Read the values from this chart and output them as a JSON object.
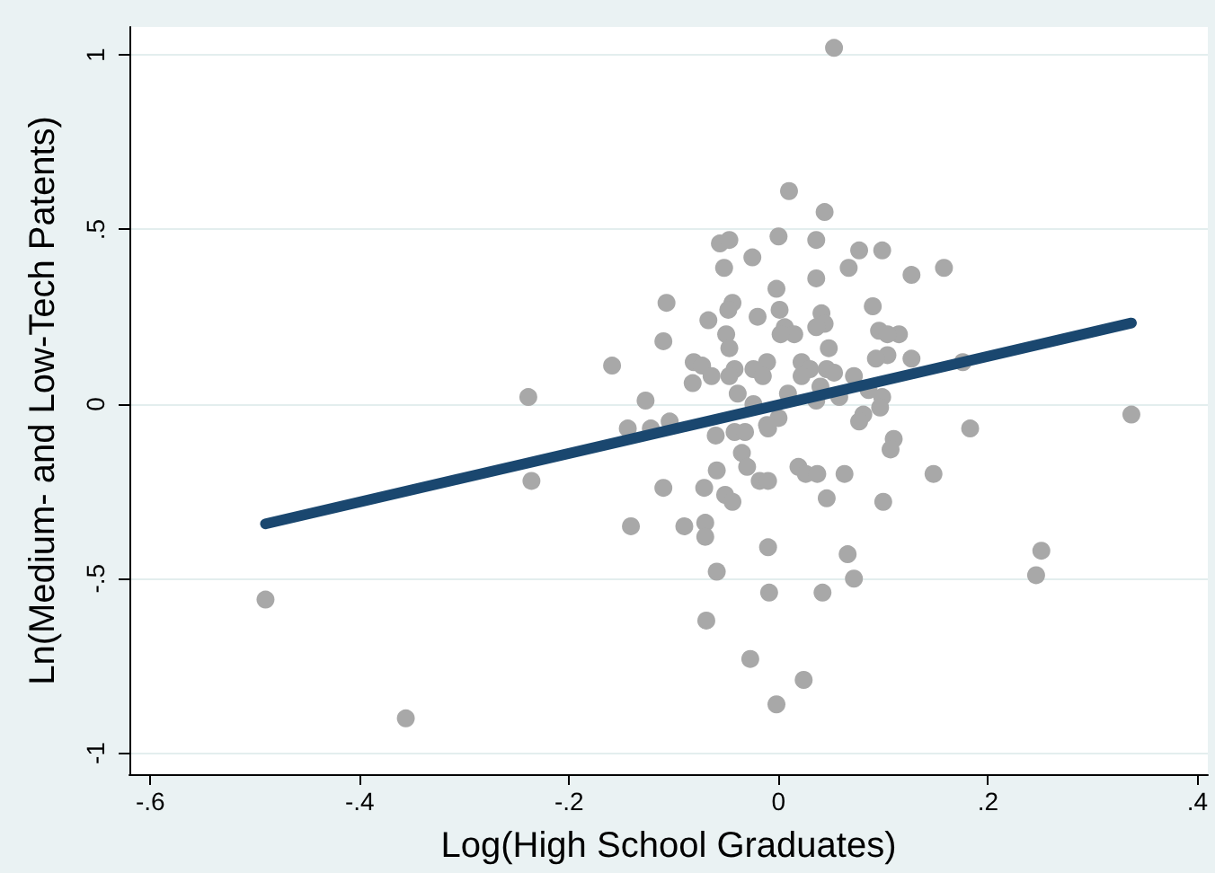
{
  "chart_data": {
    "type": "scatter",
    "xlabel": "Log(High School Graduates)",
    "ylabel": "Ln(Medium- and Low-Tech Patents)",
    "xlim": [
      -0.62,
      0.41
    ],
    "ylim": [
      -1.06,
      1.08
    ],
    "xticks": [
      {
        "value": -0.6,
        "label": "-.6"
      },
      {
        "value": -0.4,
        "label": "-.4"
      },
      {
        "value": -0.2,
        "label": "-.2"
      },
      0,
      {
        "value": 0.2,
        "label": ".2"
      },
      {
        "value": 0.4,
        "label": ".4"
      }
    ],
    "yticks": [
      {
        "value": -1,
        "label": "-1"
      },
      {
        "value": -0.5,
        "label": "-.5"
      },
      0,
      {
        "value": 0.5,
        "label": ".5"
      },
      1
    ],
    "grid": "y",
    "series": [
      {
        "color": "#a8a8a8",
        "marker": "circle",
        "x": [
          0.053,
          0.01,
          0.044,
          0.0,
          0.036,
          -0.056,
          -0.047,
          -0.025,
          0.077,
          0.099,
          -0.052,
          0.067,
          0.127,
          0.158,
          0.036,
          -0.002,
          -0.107,
          -0.044,
          0.09,
          -0.048,
          0.001,
          -0.02,
          0.041,
          -0.067,
          0.044,
          0.036,
          0.006,
          0.015,
          -0.05,
          0.002,
          0.096,
          0.115,
          0.104,
          -0.11,
          -0.047,
          0.048,
          0.104,
          0.127,
          0.093,
          -0.159,
          -0.081,
          -0.073,
          -0.042,
          -0.024,
          -0.011,
          0.022,
          0.046,
          0.03,
          0.176,
          -0.082,
          -0.064,
          -0.047,
          -0.015,
          0.022,
          0.053,
          0.072,
          0.086,
          -0.039,
          0.009,
          0.04,
          0.058,
          0.036,
          0.099,
          -0.239,
          -0.127,
          -0.024,
          0.097,
          0.081,
          0.337,
          0.0,
          0.077,
          -0.144,
          -0.122,
          -0.104,
          -0.042,
          -0.032,
          -0.011,
          -0.01,
          0.183,
          -0.06,
          0.11,
          0.107,
          -0.035,
          -0.059,
          -0.03,
          0.019,
          0.026,
          0.037,
          0.063,
          0.148,
          -0.018,
          -0.01,
          -0.236,
          -0.11,
          -0.071,
          -0.051,
          -0.044,
          0.046,
          0.1,
          -0.141,
          -0.09,
          -0.07,
          -0.07,
          -0.01,
          0.066,
          0.251,
          0.246,
          -0.059,
          0.072,
          -0.009,
          0.042,
          -0.49,
          -0.069,
          -0.027,
          0.024,
          -0.002,
          -0.356
        ],
        "values": [
          1.02,
          0.61,
          0.55,
          0.48,
          0.47,
          0.46,
          0.47,
          0.42,
          0.44,
          0.44,
          0.39,
          0.39,
          0.37,
          0.39,
          0.36,
          0.33,
          0.29,
          0.29,
          0.28,
          0.27,
          0.27,
          0.25,
          0.26,
          0.24,
          0.23,
          0.22,
          0.22,
          0.2,
          0.2,
          0.2,
          0.21,
          0.2,
          0.2,
          0.18,
          0.16,
          0.16,
          0.14,
          0.13,
          0.13,
          0.11,
          0.12,
          0.11,
          0.1,
          0.1,
          0.12,
          0.12,
          0.1,
          0.1,
          0.12,
          0.06,
          0.08,
          0.08,
          0.08,
          0.08,
          0.09,
          0.08,
          0.04,
          0.03,
          0.03,
          0.05,
          0.02,
          0.01,
          0.02,
          0.02,
          0.01,
          0.0,
          -0.01,
          -0.03,
          -0.03,
          -0.04,
          -0.05,
          -0.07,
          -0.07,
          -0.05,
          -0.08,
          -0.08,
          -0.06,
          -0.07,
          -0.07,
          -0.09,
          -0.1,
          -0.13,
          -0.14,
          -0.19,
          -0.18,
          -0.18,
          -0.2,
          -0.2,
          -0.2,
          -0.2,
          -0.22,
          -0.22,
          -0.22,
          -0.24,
          -0.24,
          -0.26,
          -0.28,
          -0.27,
          -0.28,
          -0.35,
          -0.35,
          -0.34,
          -0.38,
          -0.41,
          -0.43,
          -0.42,
          -0.49,
          -0.48,
          -0.5,
          -0.54,
          -0.54,
          -0.56,
          -0.62,
          -0.73,
          -0.79,
          -0.86,
          -0.9
        ]
      },
      {
        "type": "line",
        "marker": "none",
        "color": "#1a476f",
        "x": [
          -0.49,
          0.337
        ],
        "values": [
          -0.343,
          0.232
        ]
      }
    ]
  }
}
